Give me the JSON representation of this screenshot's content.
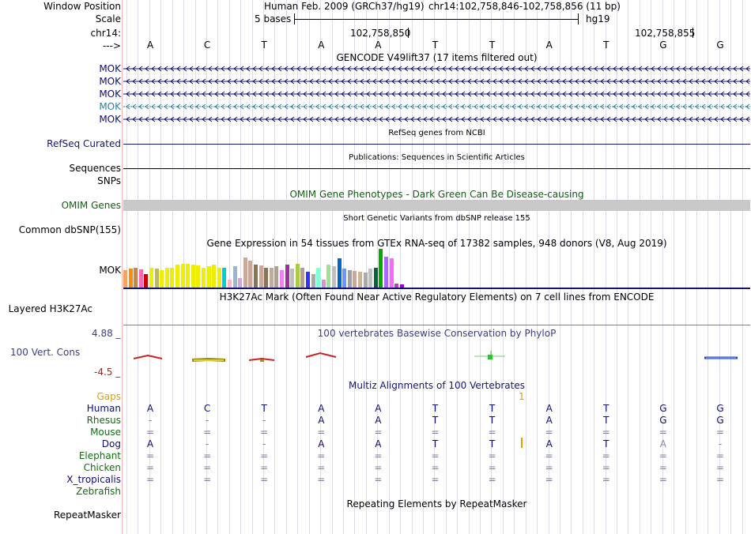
{
  "header": {
    "window_position_label": "Window Position",
    "window_position_value": "Human Feb. 2009 (GRCh37/hg19)",
    "coords": "chr14:102,758,846-102,758,856 (11 bp)",
    "scale_label": "Scale",
    "scale_text": "5 bases",
    "scale_db": "hg19",
    "chrom_label": "chr14:",
    "pos1": "102,758,850",
    "pos2": "102,758,855",
    "strand_label": "--->"
  },
  "sequence": [
    "A",
    "C",
    "T",
    "A",
    "A",
    "T",
    "T",
    "A",
    "T",
    "G",
    "G"
  ],
  "gencode": {
    "title": "GENCODE V49lift37 (17 items filtered out)",
    "rows": [
      "MOK",
      "MOK",
      "MOK",
      "MOK",
      "MOK"
    ]
  },
  "refseq": {
    "title": "RefSeq genes from NCBI",
    "label": "RefSeq Curated"
  },
  "publications": {
    "title": "Publications: Sequences in Scientific Articles",
    "label1": "Sequences",
    "label2": "SNPs"
  },
  "omim": {
    "title": "OMIM Gene Phenotypes - Dark Green Can Be Disease-causing",
    "label": "OMIM Genes"
  },
  "dbsnp": {
    "title": "Short Genetic Variants from dbSNP release 155",
    "label": "Common dbSNP(155)"
  },
  "gtex": {
    "title": "Gene Expression in 54 tissues from GTEx RNA-seq of 17382 samples, 948 donors (V8, Aug 2019)",
    "label": "MOK",
    "values": [
      0.45,
      0.48,
      0.52,
      0.46,
      0.35,
      0.52,
      0.48,
      0.45,
      0.5,
      0.52,
      0.6,
      0.62,
      0.62,
      0.6,
      0.58,
      0.52,
      0.56,
      0.6,
      0.5,
      0.52,
      0.2,
      0.55,
      0.25,
      0.78,
      0.7,
      0.6,
      0.58,
      0.52,
      0.5,
      0.56,
      0.45,
      0.6,
      0.48,
      0.62,
      0.5,
      0.4,
      0.35,
      0.5,
      0.2,
      0.6,
      0.55,
      0.75,
      0.48,
      0.45,
      0.42,
      0.4,
      0.38,
      0.48,
      0.5,
      1.0,
      0.8,
      0.75,
      0.1,
      0.08
    ],
    "colors": [
      "#f4a460",
      "#ff8c00",
      "#cd853f",
      "#ff69b4",
      "#cc0000",
      "#eeee00",
      "#bdb76b",
      "#eeee00",
      "#eeee00",
      "#eeee00",
      "#eeee00",
      "#eeee00",
      "#eeee00",
      "#eeee00",
      "#eeee00",
      "#eeee00",
      "#eeee00",
      "#eeee00",
      "#eeee00",
      "#00ced1",
      "#ffb6c1",
      "#9ab5cf",
      "#dda0dd",
      "#c9a89a",
      "#c9a89a",
      "#8b7355",
      "#c9a89a",
      "#8b7355",
      "#c9a89a",
      "#b0a090",
      "#ee82ee",
      "#993399",
      "#bfbfbf",
      "#aacc44",
      "#b0a090",
      "#3333ff",
      "#aaaaaa",
      "#7fffd4",
      "#cc99cc",
      "#a0e090",
      "#bfbfbf",
      "#0066cc",
      "#6699ff",
      "#a0a0a0",
      "#c9a89a",
      "#d2b48c",
      "#aaaaaa",
      "#bfbfbf",
      "#006633",
      "#00aa00",
      "#aa66ff",
      "#ff66ff",
      "#cc33cc",
      "#9900cc"
    ]
  },
  "h3k27ac": {
    "title": "H3K27Ac Mark (Often Found Near Active Regulatory Elements) on 7 cell lines from ENCODE",
    "label": "Layered H3K27Ac"
  },
  "phylop": {
    "title": "100 vertebrates Basewise Conservation by PhyloP",
    "label": "100 Vert. Cons",
    "max": "4.88 _",
    "min": "-4.5 _"
  },
  "multiz": {
    "title": "Multiz Alignments of 100 Vertebrates",
    "gaps_label": "Gaps",
    "gap_count": "1",
    "species": [
      {
        "name": "Human",
        "bases": [
          "A",
          "C",
          "T",
          "A",
          "A",
          "T",
          "T",
          "A",
          "T",
          "G",
          "G"
        ]
      },
      {
        "name": "Rhesus",
        "bases": [
          "-",
          "-",
          "-",
          "A",
          "A",
          "T",
          "T",
          "A",
          "T",
          "G",
          "G"
        ]
      },
      {
        "name": "Mouse",
        "bases": [
          "=",
          "=",
          "=",
          "=",
          "=",
          "=",
          "=",
          "=",
          "=",
          "=",
          "="
        ]
      },
      {
        "name": "Dog",
        "bases": [
          "A",
          "-",
          "-",
          "A",
          "A",
          "T",
          "T",
          "A",
          "T",
          "A",
          "-"
        ]
      },
      {
        "name": "Elephant",
        "bases": [
          "=",
          "=",
          "=",
          "=",
          "=",
          "=",
          "=",
          "=",
          "=",
          "=",
          "="
        ]
      },
      {
        "name": "Chicken",
        "bases": [
          "=",
          "=",
          "=",
          "=",
          "=",
          "=",
          "=",
          "=",
          "=",
          "=",
          "="
        ]
      },
      {
        "name": "X_tropicalis",
        "bases": [
          "=",
          "=",
          "=",
          "=",
          "=",
          "=",
          "=",
          "=",
          "=",
          "=",
          "="
        ]
      },
      {
        "name": "Zebrafish",
        "bases": [
          "",
          "",
          "",
          "",
          "",
          "",
          "",
          "",
          "",
          "",
          ""
        ]
      }
    ]
  },
  "repeatmasker": {
    "title": "Repeating Elements by RepeatMasker",
    "label": "RepeatMasker"
  },
  "colors": {
    "gene_blue": "#0c0c78",
    "refseq_navy": "#141474",
    "omim_green": "#0f5f0f",
    "omim_gray": "#c8c8c8",
    "phylop_blue": "#3c3c8c",
    "phylop_red": "#8c2c2c",
    "gaps_orange": "#e1a000",
    "species_green": "#0e6e0e",
    "mok_teal": "#2a7ea0"
  }
}
